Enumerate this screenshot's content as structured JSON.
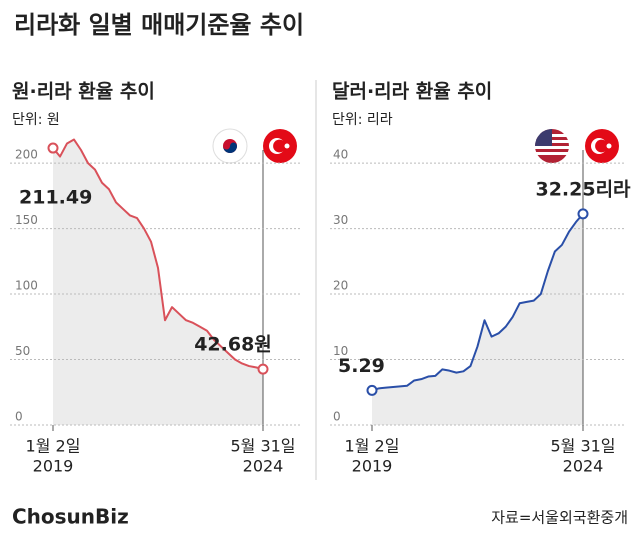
{
  "title": "리라화 일별 매매기준율 추이",
  "chart_data": [
    {
      "type": "line",
      "title": "원·리라 환율 추이",
      "subtitle": "단위: 원",
      "categories": [
        "1월 2일",
        null,
        null,
        null,
        null,
        null,
        null,
        null,
        null,
        null,
        null,
        null,
        null,
        null,
        null,
        null,
        null,
        null,
        null,
        null,
        null,
        null,
        null,
        null,
        null,
        null,
        null,
        null,
        null,
        null,
        "5월 31일"
      ],
      "category_years": [
        "2019",
        null,
        null,
        null,
        null,
        null,
        null,
        null,
        null,
        null,
        null,
        null,
        null,
        null,
        null,
        null,
        null,
        null,
        null,
        null,
        null,
        null,
        null,
        null,
        null,
        null,
        null,
        null,
        null,
        null,
        "2024"
      ],
      "series": [
        {
          "name": "원·리라",
          "color": "#d9515a",
          "values": [
            211.49,
            205,
            215,
            218,
            210,
            200,
            195,
            185,
            180,
            170,
            165,
            160,
            158,
            150,
            140,
            120,
            80,
            90,
            85,
            80,
            78,
            75,
            72,
            65,
            60,
            55,
            50,
            47,
            45,
            44,
            42.68
          ],
          "value_labels": [
            "211.49",
            null,
            null,
            null,
            null,
            null,
            null,
            null,
            null,
            null,
            null,
            null,
            null,
            null,
            null,
            null,
            null,
            null,
            null,
            null,
            null,
            null,
            null,
            null,
            null,
            null,
            null,
            null,
            null,
            null,
            "42.68원"
          ]
        }
      ],
      "ylim": [
        0,
        210
      ],
      "yticks": [
        0,
        50,
        100,
        150,
        200
      ],
      "grid": true
    },
    {
      "type": "line",
      "title": "달러·리라 환율 추이",
      "subtitle": "단위: 리라",
      "categories": [
        "1월 2일",
        null,
        null,
        null,
        null,
        null,
        null,
        null,
        null,
        null,
        null,
        null,
        null,
        null,
        null,
        null,
        null,
        null,
        null,
        null,
        null,
        null,
        null,
        null,
        null,
        null,
        null,
        null,
        null,
        null,
        "5월 31일"
      ],
      "category_years": [
        "2019",
        null,
        null,
        null,
        null,
        null,
        null,
        null,
        null,
        null,
        null,
        null,
        null,
        null,
        null,
        null,
        null,
        null,
        null,
        null,
        null,
        null,
        null,
        null,
        null,
        null,
        null,
        null,
        null,
        null,
        "2024"
      ],
      "series": [
        {
          "name": "달러·리라",
          "color": "#2a4fa8",
          "values": [
            5.29,
            5.6,
            5.7,
            5.8,
            5.9,
            6.0,
            6.8,
            7.0,
            7.4,
            7.5,
            8.5,
            8.3,
            8.0,
            8.2,
            9,
            12,
            16,
            13.5,
            14.0,
            15.0,
            16.5,
            18.6,
            18.8,
            19.0,
            20,
            23.5,
            26.5,
            27.5,
            29.5,
            31,
            32.25
          ],
          "value_labels": [
            "5.29",
            null,
            null,
            null,
            null,
            null,
            null,
            null,
            null,
            null,
            null,
            null,
            null,
            null,
            null,
            null,
            null,
            null,
            null,
            null,
            null,
            null,
            null,
            null,
            null,
            null,
            null,
            null,
            null,
            null,
            "32.25리라"
          ]
        }
      ],
      "ylim": [
        0,
        42
      ],
      "yticks": [
        0,
        10,
        20,
        30,
        40
      ],
      "grid": true
    }
  ],
  "footer": {
    "logo": "ChosunBiz",
    "source": "자료=서울외국환중개"
  }
}
